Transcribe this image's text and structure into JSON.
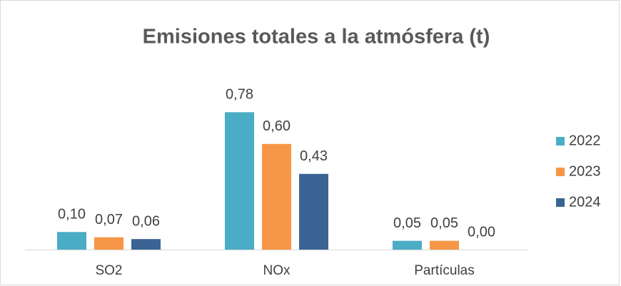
{
  "chart_data": {
    "type": "bar",
    "title": "Emisiones totales a la atmósfera (t)",
    "categories": [
      "SO2",
      "NOx",
      "Partículas"
    ],
    "series": [
      {
        "name": "2022",
        "color": "#4bacc6",
        "values": [
          0.1,
          0.78,
          0.05
        ],
        "value_labels": [
          "0,10",
          "0,78",
          "0,05"
        ]
      },
      {
        "name": "2023",
        "color": "#f79646",
        "values": [
          0.07,
          0.6,
          0.05
        ],
        "value_labels": [
          "0,07",
          "0,60",
          "0,05"
        ]
      },
      {
        "name": "2024",
        "color": "#3b6494",
        "values": [
          0.06,
          0.43,
          0.0
        ],
        "value_labels": [
          "0,06",
          "0,43",
          "0,00"
        ]
      }
    ],
    "ylim": [
      0,
      1
    ],
    "legend": "right"
  }
}
